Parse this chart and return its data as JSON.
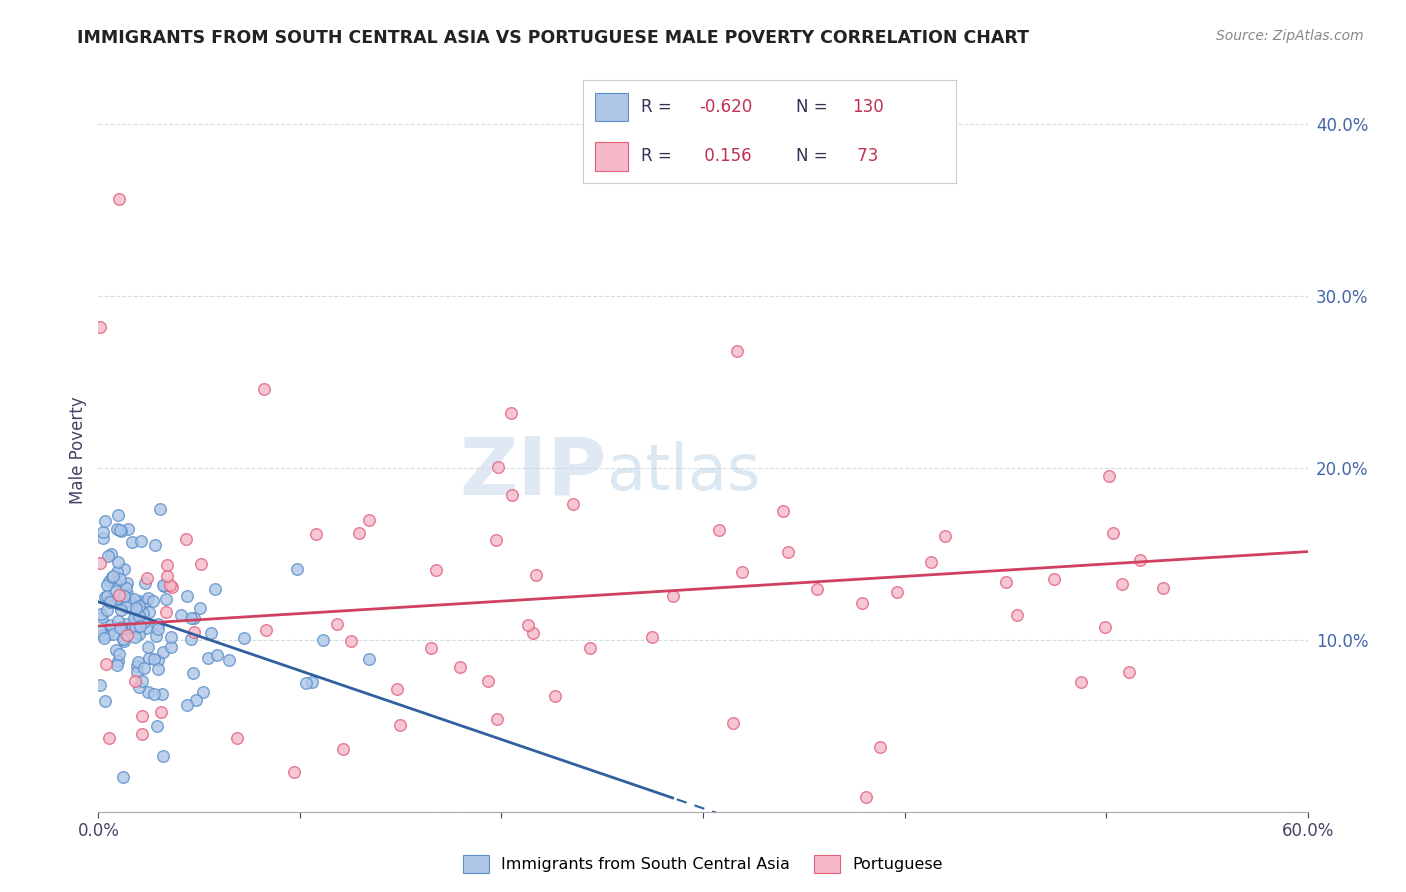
{
  "title": "IMMIGRANTS FROM SOUTH CENTRAL ASIA VS PORTUGUESE MALE POVERTY CORRELATION CHART",
  "source": "Source: ZipAtlas.com",
  "ylabel": "Male Poverty",
  "xlim": [
    0.0,
    0.6
  ],
  "ylim": [
    0.0,
    0.42
  ],
  "blue_R": -0.62,
  "blue_N": 130,
  "pink_R": 0.156,
  "pink_N": 73,
  "blue_color": "#aec6e8",
  "pink_color": "#f5b8c8",
  "blue_edge": "#5b8fc9",
  "pink_edge": "#e0607a",
  "blue_line_color": "#3060a0",
  "pink_line_color": "#d04060",
  "watermark_zip": "ZIP",
  "watermark_atlas": "atlas",
  "legend_label_blue": "Immigrants from South Central Asia",
  "legend_label_pink": "Portuguese",
  "title_color": "#222222",
  "source_color": "#888888",
  "axis_color": "#4466aa",
  "label_color": "#444466",
  "blue_intercept": 0.122,
  "blue_slope": -0.4,
  "pink_intercept": 0.108,
  "pink_slope": 0.072
}
